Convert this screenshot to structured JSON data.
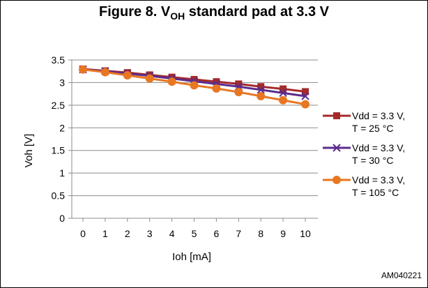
{
  "chart_data": {
    "type": "line",
    "title_main": "Figure 8. V",
    "title_subscript": "OH",
    "title_rest": " standard pad at 3.3 V",
    "xlabel": "Ioh  [mA]",
    "ylabel": "Voh  [V]",
    "x": [
      0,
      1,
      2,
      3,
      4,
      5,
      6,
      7,
      8,
      9,
      10
    ],
    "x_tick_labels": [
      "0",
      "1",
      "2",
      "3",
      "4",
      "5",
      "6",
      "7",
      "8",
      "9",
      "10"
    ],
    "y_tick_labels": [
      "0",
      "0.5",
      "1",
      "1.5",
      "2",
      "2.5",
      "3",
      "3.5"
    ],
    "y_ticks": [
      0,
      0.5,
      1,
      1.5,
      2,
      2.5,
      3,
      3.5
    ],
    "ylim": [
      0,
      3.5
    ],
    "xlim": [
      0,
      10
    ],
    "grid": true,
    "legend_position": "right",
    "series": [
      {
        "name_line1": "Vdd = 3.3 V,",
        "name_line2": "T = 25 °C",
        "color": "#a52a2a",
        "marker": "square",
        "values": [
          3.3,
          3.26,
          3.22,
          3.17,
          3.12,
          3.07,
          3.02,
          2.97,
          2.91,
          2.86,
          2.8
        ]
      },
      {
        "name_line1": "Vdd = 3.3 V,",
        "name_line2": "T = 30 °C",
        "color": "#5b2c8c",
        "marker": "x",
        "values": [
          3.29,
          3.25,
          3.2,
          3.15,
          3.09,
          3.03,
          2.97,
          2.91,
          2.84,
          2.77,
          2.7
        ]
      },
      {
        "name_line1": "Vdd = 3.3 V,",
        "name_line2": "T = 105 °C",
        "color": "#e87722",
        "marker": "circle",
        "values": [
          3.29,
          3.23,
          3.16,
          3.09,
          3.02,
          2.94,
          2.87,
          2.79,
          2.7,
          2.61,
          2.52
        ]
      }
    ]
  },
  "reference_code": "AM040221"
}
